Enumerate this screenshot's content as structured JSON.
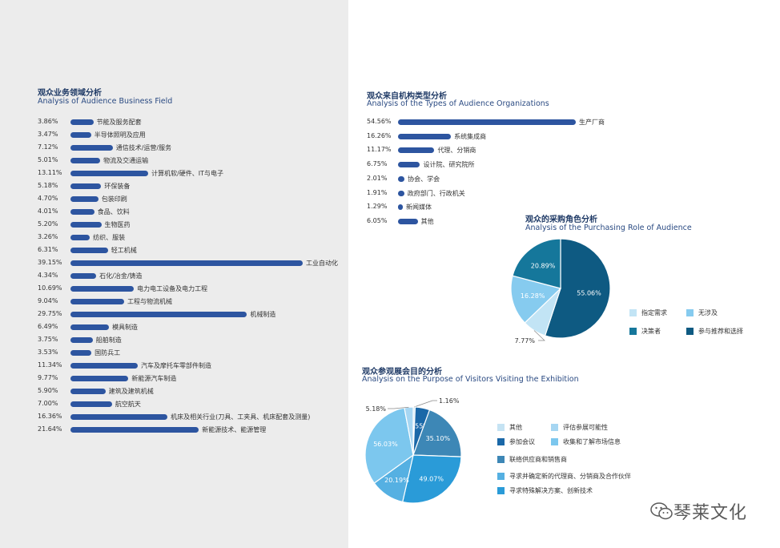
{
  "watermark": "琴莱文化",
  "chart_data": [
    {
      "type": "bar",
      "orientation": "horizontal",
      "title": "观众业务领域分析",
      "subtitle": "Analysis of Audience Business Field",
      "max_value": 39.15,
      "items": [
        {
          "pct": "3.86%",
          "value": 3.86,
          "label": "节能及服务配套"
        },
        {
          "pct": "3.47%",
          "value": 3.47,
          "label": "半导体照明及应用"
        },
        {
          "pct": "7.12%",
          "value": 7.12,
          "label": "通信技术/运营/服务"
        },
        {
          "pct": "5.01%",
          "value": 5.01,
          "label": "物流及交通运输"
        },
        {
          "pct": "13.11%",
          "value": 13.11,
          "label": "计算机软/硬件、IT与电子"
        },
        {
          "pct": "5.18%",
          "value": 5.18,
          "label": "环保装备"
        },
        {
          "pct": "4.70%",
          "value": 4.7,
          "label": "包装印刷"
        },
        {
          "pct": "4.01%",
          "value": 4.01,
          "label": "食品、饮料"
        },
        {
          "pct": "5.20%",
          "value": 5.2,
          "label": "生物医药"
        },
        {
          "pct": "3.26%",
          "value": 3.26,
          "label": "纺织、服装"
        },
        {
          "pct": "6.31%",
          "value": 6.31,
          "label": "轻工机械"
        },
        {
          "pct": "39.15%",
          "value": 39.15,
          "label": "工业自动化"
        },
        {
          "pct": "4.34%",
          "value": 4.34,
          "label": "石化/冶金/铸造"
        },
        {
          "pct": "10.69%",
          "value": 10.69,
          "label": "电力电工设备及电力工程"
        },
        {
          "pct": "9.04%",
          "value": 9.04,
          "label": "工程与物流机械"
        },
        {
          "pct": "29.75%",
          "value": 29.75,
          "label": "机械制造"
        },
        {
          "pct": "6.49%",
          "value": 6.49,
          "label": "模具制造"
        },
        {
          "pct": "3.75%",
          "value": 3.75,
          "label": "船舶制造"
        },
        {
          "pct": "3.53%",
          "value": 3.53,
          "label": "国防兵工"
        },
        {
          "pct": "11.34%",
          "value": 11.34,
          "label": "汽车及摩托车零部件制造"
        },
        {
          "pct": "9.77%",
          "value": 9.77,
          "label": "新能源汽车制造"
        },
        {
          "pct": "5.90%",
          "value": 5.9,
          "label": "建筑及建筑机械"
        },
        {
          "pct": "7.00%",
          "value": 7.0,
          "label": "航空航天"
        },
        {
          "pct": "16.36%",
          "value": 16.36,
          "label": "机床及相关行业(刀具、工夹具、机床配套及测量)"
        },
        {
          "pct": "21.64%",
          "value": 21.64,
          "label": "新能源技术、能源管理"
        }
      ]
    },
    {
      "type": "bar",
      "orientation": "horizontal",
      "title": "观众来自机构类型分析",
      "subtitle": "Analysis of the Types of Audience Organizations",
      "max_value": 54.56,
      "items": [
        {
          "pct": "54.56%",
          "value": 54.56,
          "label": "生产厂商"
        },
        {
          "pct": "16.26%",
          "value": 16.26,
          "label": "系统集成商"
        },
        {
          "pct": "11.17%",
          "value": 11.17,
          "label": "代理、分销商"
        },
        {
          "pct": "6.75%",
          "value": 6.75,
          "label": "设计院、研究院所"
        },
        {
          "pct": "2.01%",
          "value": 2.01,
          "label": "协会、学会"
        },
        {
          "pct": "1.91%",
          "value": 1.91,
          "label": "政府部门、行政机关"
        },
        {
          "pct": "1.29%",
          "value": 1.29,
          "label": "新闻媒体"
        },
        {
          "pct": "6.05%",
          "value": 6.05,
          "label": "其他"
        }
      ]
    },
    {
      "type": "pie",
      "title": "观众的采购角色分析",
      "subtitle": "Analysis of the Purchasing Role of Audience",
      "slices": [
        {
          "label": "参与推荐和选择",
          "value": 55.06,
          "text": "55.06%",
          "color": "#0e5a82"
        },
        {
          "label": "指定需求",
          "value": 7.77,
          "text": "7.77%",
          "color": "#c2e4f5"
        },
        {
          "label": "无涉及",
          "value": 16.28,
          "text": "16.28%",
          "color": "#86cbef"
        },
        {
          "label": "决策者",
          "value": 20.89,
          "text": "20.89%",
          "color": "#15779b"
        }
      ],
      "legend": [
        {
          "label": "指定需求",
          "color": "#c2e4f5"
        },
        {
          "label": "无涉及",
          "color": "#86cbef"
        },
        {
          "label": "决策者",
          "color": "#15779b"
        },
        {
          "label": "参与推荐和选择",
          "color": "#0e5a82"
        }
      ]
    },
    {
      "type": "pie",
      "title": "观众参观展会目的分析",
      "subtitle": "Analysis on the Purpose of Visitors Visiting the Exhibition",
      "slices": [
        {
          "label": "其他",
          "value": 1.16,
          "text": "1.16%",
          "color": "#c5e3f3"
        },
        {
          "label": "参加会议",
          "value": 8.55,
          "text": "8.55%",
          "color": "#1a68a8"
        },
        {
          "label": "联络供应商和销售商",
          "value": 35.1,
          "text": "35.10%",
          "color": "#3d87b6"
        },
        {
          "label": "寻求特殊解决方案、创新技术",
          "value": 49.07,
          "text": "49.07%",
          "color": "#2a9bd8"
        },
        {
          "label": "寻求并确定新的代理商、分销商及合作伙伴",
          "value": 20.19,
          "text": "20.19%",
          "color": "#55b0e2"
        },
        {
          "label": "收集和了解市场信息",
          "value": 56.03,
          "text": "56.03%",
          "color": "#7cc7ee"
        },
        {
          "label": "评估参展可能性",
          "value": 5.18,
          "text": "5.18%",
          "color": "#a6d6f2"
        }
      ],
      "legend": [
        {
          "label": "其他",
          "color": "#c5e3f3"
        },
        {
          "label": "评估参展可能性",
          "color": "#a6d6f2"
        },
        {
          "label": "参加会议",
          "color": "#1a68a8"
        },
        {
          "label": "收集和了解市场信息",
          "color": "#7cc7ee"
        },
        {
          "label": "联络供应商和销售商",
          "color": "#3d87b6"
        },
        {
          "label": "寻求并确定新的代理商、分销商及合作伙伴",
          "color": "#55b0e2"
        },
        {
          "label": "寻求特殊解决方案、创新技术",
          "color": "#2a9bd8"
        }
      ]
    }
  ]
}
